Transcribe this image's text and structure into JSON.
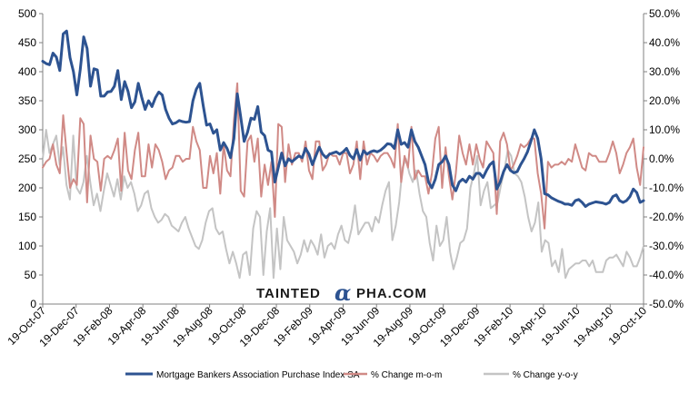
{
  "chart_data": {
    "type": "line",
    "title": "",
    "xlabel": "",
    "ylabel": "",
    "left_axis": {
      "ylim": [
        0,
        500
      ],
      "ticks": [
        "0",
        "50",
        "100",
        "150",
        "200",
        "250",
        "300",
        "350",
        "400",
        "450",
        "500"
      ]
    },
    "right_axis": {
      "ylim": [
        -50,
        50
      ],
      "ticks": [
        "-50.0%",
        "-40.0%",
        "-30.0%",
        "-20.0%",
        "-10.0%",
        "0.0%",
        "10.0%",
        "20.0%",
        "30.0%",
        "40.0%",
        "50.0%"
      ]
    },
    "x_tick_labels": [
      "19-Oct-07",
      "19-Dec-07",
      "19-Feb-08",
      "19-Apr-08",
      "19-Jun-08",
      "19-Aug-08",
      "19-Oct-08",
      "19-Dec-08",
      "19-Feb-09",
      "19-Apr-09",
      "19-Jun-09",
      "19-Aug-09",
      "19-Oct-09",
      "19-Dec-09",
      "19-Feb-10",
      "19-Apr-10",
      "19-Jun-10",
      "19-Aug-10",
      "19-Oct-10"
    ],
    "grid": false,
    "legend_position": "bottom",
    "watermark": {
      "left": "TAINTED",
      "alpha": "α",
      "right": "PHA.COM"
    },
    "series": [
      {
        "name": "Mortgage Bankers Association Purchase Index SA",
        "axis": "left",
        "color": "#2d5391",
        "values": [
          418,
          414,
          412,
          432,
          425,
          402,
          465,
          470,
          424,
          400,
          360,
          404,
          460,
          440,
          375,
          405,
          403,
          358,
          358,
          365,
          366,
          375,
          402,
          352,
          383,
          366,
          338,
          348,
          380,
          356,
          335,
          350,
          340,
          355,
          365,
          360,
          335,
          320,
          310,
          312,
          316,
          314,
          313,
          314,
          350,
          370,
          380,
          342,
          308,
          310,
          294,
          300,
          265,
          278,
          268,
          252,
          285,
          362,
          322,
          280,
          296,
          320,
          318,
          340,
          296,
          290,
          265,
          262,
          210,
          235,
          260,
          238,
          250,
          245,
          250,
          255,
          252,
          268,
          258,
          240,
          255,
          270,
          258,
          252,
          258,
          260,
          262,
          258,
          262,
          268,
          256,
          250,
          266,
          248,
          264,
          258,
          262,
          264,
          262,
          265,
          270,
          276,
          275,
          268,
          300,
          275,
          278,
          270,
          300,
          280,
          270,
          255,
          240,
          210,
          200,
          215,
          240,
          245,
          255,
          240,
          205,
          195,
          210,
          215,
          210,
          220,
          215,
          225,
          225,
          218,
          230,
          240,
          245,
          198,
          210,
          228,
          240,
          230,
          226,
          228,
          240,
          250,
          262,
          280,
          300,
          285,
          250,
          190,
          188,
          183,
          180,
          177,
          175,
          172,
          172,
          170,
          178,
          180,
          175,
          168,
          172,
          174,
          176,
          175,
          174,
          172,
          175,
          185,
          188,
          178,
          175,
          178,
          185,
          198,
          192,
          175,
          178
        ]
      },
      {
        "name": "% Change m-o-m",
        "axis": "right",
        "color": "#d08a86",
        "values": [
          -3,
          -1,
          0,
          5,
          -2,
          -5,
          15,
          2,
          -10,
          -7,
          -9,
          14,
          12,
          -15,
          8,
          0,
          -1,
          -11,
          0,
          1,
          0,
          3,
          7,
          -11,
          9,
          -4,
          -7,
          3,
          9,
          -6,
          -6,
          5,
          -3,
          5,
          3,
          -1,
          -7,
          -4,
          -3,
          1,
          1,
          -1,
          0,
          0,
          11,
          6,
          3,
          -10,
          -10,
          1,
          -5,
          2,
          -12,
          5,
          -4,
          -6,
          13,
          26,
          -11,
          -13,
          6,
          8,
          -1,
          7,
          -13,
          -2,
          -9,
          -1,
          -20,
          12,
          11,
          -8,
          5,
          -2,
          2,
          2,
          -1,
          6,
          -4,
          -7,
          6,
          6,
          -4,
          -2,
          2,
          1,
          1,
          -2,
          2,
          2,
          -5,
          -2,
          6,
          -7,
          6,
          -2,
          2,
          1,
          -1,
          1,
          2,
          2,
          0,
          -3,
          12,
          -8,
          1,
          -3,
          11,
          -7,
          -4,
          -6,
          -6,
          -12,
          -5,
          7,
          11,
          -10,
          4,
          -6,
          -14,
          -5,
          8,
          2,
          -2,
          5,
          -2,
          5,
          0,
          -3,
          6,
          4,
          2,
          -19,
          6,
          9,
          5,
          -4,
          -2,
          1,
          5,
          4,
          5,
          7,
          7,
          -5,
          -12,
          -24,
          -1,
          -3,
          -2,
          -2,
          -1,
          -2,
          0,
          -1,
          5,
          1,
          -3,
          -4,
          2,
          1,
          1,
          -1,
          -1,
          -1,
          2,
          6,
          2,
          -5,
          -2,
          2,
          4,
          7,
          -3,
          -9,
          4
        ]
      },
      {
        "name": "% Change y-o-y",
        "axis": "right",
        "color": "#c4c4c4",
        "values": [
          0,
          10,
          2,
          5,
          8,
          -2,
          4,
          -9,
          -14,
          8,
          -10,
          -12,
          -8,
          1,
          -8,
          -16,
          -12,
          -18,
          -11,
          -5,
          -9,
          -13,
          -7,
          -14,
          -6,
          -10,
          -8,
          -12,
          -18,
          -16,
          -12,
          -11,
          -17,
          -20,
          -22,
          -21,
          -19,
          -20,
          -23,
          -24,
          -25,
          -22,
          -20,
          -24,
          -27,
          -30,
          -31,
          -28,
          -22,
          -18,
          -17,
          -24,
          -26,
          -25,
          -31,
          -36,
          -32,
          -36,
          -41,
          -33,
          -32,
          -40,
          -24,
          -18,
          -20,
          -40,
          -25,
          -17,
          -41,
          -24,
          -38,
          -20,
          -28,
          -30,
          -32,
          -36,
          -33,
          -28,
          -32,
          -28,
          -30,
          -33,
          -26,
          -34,
          -30,
          -29,
          -31,
          -26,
          -23,
          -28,
          -29,
          -24,
          -16,
          -26,
          -24,
          -22,
          -22,
          -25,
          -20,
          -22,
          -16,
          -11,
          -8,
          -28,
          -23,
          -15,
          -3,
          0,
          -5,
          -8,
          -4,
          -12,
          -18,
          -20,
          -29,
          -35,
          -23,
          -30,
          -28,
          -20,
          -32,
          -38,
          -34,
          -29,
          -28,
          -24,
          -10,
          -5,
          1,
          -16,
          -11,
          -8,
          -17,
          -16,
          -15,
          -9,
          -4,
          3,
          1,
          -5,
          -6,
          -8,
          -13,
          -20,
          -25,
          -22,
          -15,
          -32,
          -28,
          -29,
          -37,
          -35,
          -39,
          -31,
          -41,
          -38,
          -37,
          -36,
          -36,
          -35,
          -35,
          -37,
          -35,
          -39,
          -39,
          -39,
          -35,
          -34,
          -34,
          -33,
          -35,
          -37,
          -32,
          -34,
          -37,
          -37,
          -34,
          -30
        ]
      }
    ]
  }
}
